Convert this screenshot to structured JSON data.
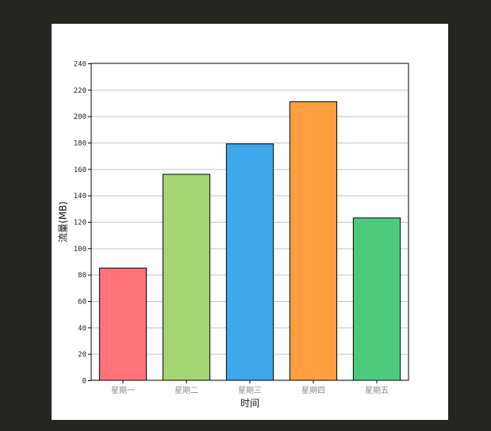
{
  "chart_data": {
    "type": "bar",
    "categories": [
      "星期一",
      "星期二",
      "星期三",
      "星期四",
      "星期五"
    ],
    "values": [
      85,
      156,
      179,
      211,
      123
    ],
    "colors": [
      "#ff7378",
      "#a3d672",
      "#3ea8eb",
      "#ff9f40",
      "#4dcb7d"
    ],
    "title": "",
    "xlabel": "时间",
    "ylabel": "流量(MB)",
    "ylim": [
      0,
      240
    ],
    "yticks": [
      0,
      20,
      40,
      60,
      80,
      100,
      120,
      140,
      160,
      180,
      200,
      220,
      240
    ],
    "grid": true,
    "legend": "none"
  }
}
